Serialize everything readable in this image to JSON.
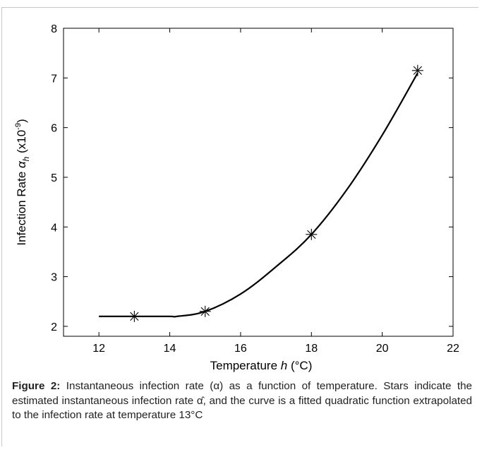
{
  "chart_data": {
    "type": "line",
    "xlabel_prefix": "Temperature ",
    "xlabel_var": "h",
    "xlabel_unit": " (°C)",
    "ylabel_prefix": "Infection Rate ",
    "ylabel_var": "α",
    "ylabel_sub": "h",
    "ylabel_scale_open": " (x10",
    "ylabel_scale_exp": "-9",
    "ylabel_scale_close": ")",
    "xlim": [
      11,
      22
    ],
    "ylim": [
      1.8,
      8
    ],
    "xticks": [
      12,
      14,
      16,
      18,
      20,
      22
    ],
    "yticks": [
      2,
      3,
      4,
      5,
      6,
      7,
      8
    ],
    "grid": false,
    "series": [
      {
        "kind": "fitted_curve",
        "x": [
          12,
          13,
          14,
          14.2,
          15,
          16,
          17,
          18,
          19,
          20,
          21
        ],
        "y": [
          2.2,
          2.2,
          2.2,
          2.2,
          2.3,
          2.65,
          3.2,
          3.85,
          4.75,
          5.85,
          7.1
        ]
      },
      {
        "kind": "estimated_points",
        "marker": "star",
        "x": [
          13,
          15,
          18,
          21
        ],
        "y": [
          2.2,
          2.3,
          3.85,
          7.15
        ]
      }
    ]
  },
  "caption": {
    "label": "Figure 2:",
    "text": " Instantaneous infection rate (α) as a function of temperature. Stars indicate the estimated instantaneous infection rate α̂, and the curve is a fitted quadratic function extrapolated to the infection rate at temperature 13°C"
  }
}
